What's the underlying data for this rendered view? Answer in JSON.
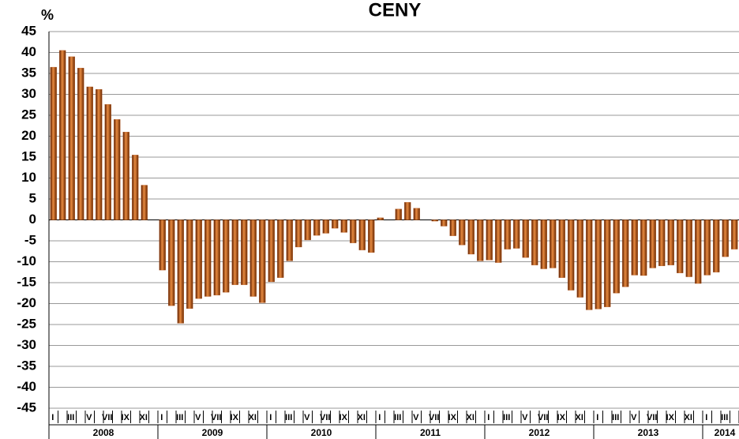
{
  "chart_data": {
    "type": "bar",
    "title": "CENY",
    "y_label": "%",
    "categories": [
      "I",
      null,
      "III",
      null,
      "V",
      null,
      "VII",
      null,
      "IX",
      null,
      "XI",
      null,
      "I",
      null,
      "III",
      null,
      "V",
      null,
      "VII",
      null,
      "IX",
      null,
      "XI",
      null,
      "I",
      null,
      "III",
      null,
      "V",
      null,
      "VII",
      null,
      "IX",
      null,
      "XI",
      null,
      "I",
      null,
      "III",
      null,
      "V",
      null,
      "VII",
      null,
      "IX",
      null,
      "XI",
      null,
      "I",
      null,
      "III",
      null,
      "V",
      null,
      "VII",
      null,
      "IX",
      null,
      "XI",
      null,
      "I",
      null,
      "III",
      null,
      "V",
      null,
      "VII",
      null,
      "IX",
      null,
      "XI",
      null,
      "I",
      null,
      "III",
      null
    ],
    "years": [
      "2008",
      "2009",
      "2010",
      "2011",
      "2012",
      "2013",
      "2014"
    ],
    "values": [
      36.5,
      40.5,
      39,
      36.3,
      31.8,
      31.2,
      27.6,
      24,
      21,
      15.5,
      8.3,
      0,
      -12,
      -20.5,
      -24.7,
      -21.2,
      -18.8,
      -18.3,
      -18,
      -17.3,
      -15.5,
      -15.5,
      -18.3,
      -19.8,
      -14.8,
      -13.8,
      -9.8,
      -6.5,
      -4.8,
      -3.7,
      -3.2,
      -2,
      -3,
      -5.5,
      -7.2,
      -7.8,
      0.5,
      0,
      2.6,
      4.2,
      2.8,
      0,
      -0.3,
      -1.5,
      -3.8,
      -6,
      -8.2,
      -9.8,
      -9.6,
      -10.2,
      -7,
      -6.8,
      -9,
      -10.8,
      -11.7,
      -11.5,
      -13.8,
      -16.8,
      -18.5,
      -21.5,
      -21.3,
      -20.8,
      -17.5,
      -16,
      -13.2,
      -13.3,
      -11.5,
      -11,
      -10.8,
      -12.7,
      -13.6,
      -15.2,
      -13.2,
      -12.5,
      -8.8,
      -7
    ],
    "color": "#b5541a",
    "ylim": [
      -45,
      45
    ],
    "yticks": [
      -45,
      -40,
      -35,
      -30,
      -25,
      -20,
      -15,
      -10,
      -5,
      0,
      5,
      10,
      15,
      20,
      25,
      30,
      35,
      40,
      45
    ],
    "grid": true
  }
}
